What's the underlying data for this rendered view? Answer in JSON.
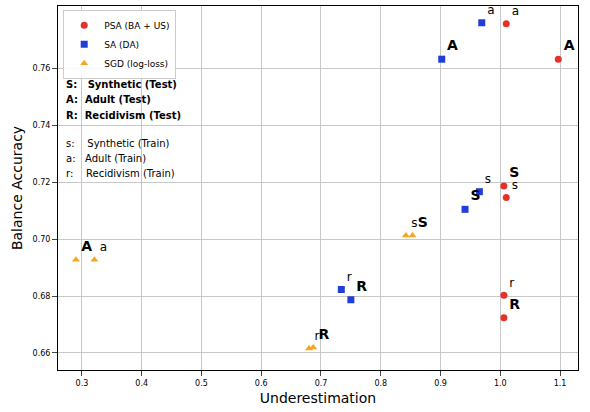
{
  "chart_data": {
    "type": "scatter",
    "x_label": "Underestimation",
    "y_label": "Balance Accuracy",
    "xlim": [
      0.26,
      1.13
    ],
    "ylim": [
      0.654,
      0.782
    ],
    "xticks": [
      0.3,
      0.4,
      0.5,
      0.6,
      0.7,
      0.8,
      0.9,
      {
        "value": 1,
        "label": "1.0"
      },
      1.1
    ],
    "yticks": [
      0.66,
      0.68,
      {
        "value": 0.7,
        "label": "0.70"
      },
      0.72,
      0.74,
      0.76
    ],
    "grid": true,
    "legend": "upper left",
    "annotations": [
      "S:   Synthetic (Test)",
      "A:  Adult (Test)",
      "R:  Recidivism (Test)",
      "s:    Synthetic (Train)",
      "a:   Adult (Train)",
      "r:    Recidivism (Train)"
    ],
    "series": [
      {
        "name": "PSA (BA + US)",
        "color": "#e8302a",
        "marker": "circle",
        "x": [
          1.01,
          1.097,
          1.006,
          1.01,
          1.006,
          1.006
        ],
        "values": [
          0.7758,
          0.7633,
          0.7187,
          0.7147,
          0.6803,
          0.6724
        ],
        "labels": [
          "a",
          "A",
          "S",
          "s",
          "r",
          "R"
        ]
      },
      {
        "name": "SA (DA)",
        "color": "#1f3fd6",
        "marker": "square",
        "x": [
          0.969,
          0.902,
          0.965,
          0.941,
          0.734,
          0.75
        ],
        "values": [
          0.7761,
          0.7633,
          0.7167,
          0.7105,
          0.6823,
          0.6787
        ],
        "labels": [
          "a",
          "A",
          "s",
          "S",
          "r",
          "R"
        ]
      },
      {
        "name": "SGD (log-loss)",
        "color": "#f5a623",
        "marker": "triangle-up",
        "x": [
          0.29,
          0.321,
          0.842,
          0.853,
          0.687,
          0.68
        ],
        "values": [
          0.6928,
          0.6928,
          0.7013,
          0.7013,
          0.6619,
          0.6616
        ],
        "labels": [
          "A",
          "a",
          "s",
          "S",
          "R",
          "r"
        ]
      }
    ]
  }
}
